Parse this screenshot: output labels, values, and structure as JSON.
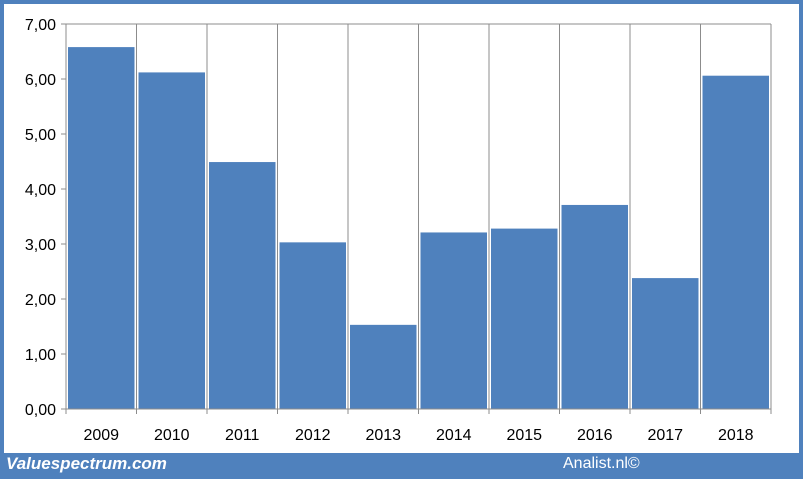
{
  "chart_data": {
    "type": "bar",
    "title": "",
    "xlabel": "",
    "ylabel": "",
    "categories": [
      "2009",
      "2010",
      "2011",
      "2012",
      "2013",
      "2014",
      "2015",
      "2016",
      "2017",
      "2018"
    ],
    "values": [
      6.58,
      6.12,
      4.49,
      3.03,
      1.53,
      3.21,
      3.28,
      3.71,
      2.38,
      6.06
    ],
    "ylim": [
      0,
      7
    ],
    "yticks": [
      "0,00",
      "1,00",
      "2,00",
      "3,00",
      "4,00",
      "5,00",
      "6,00",
      "7,00"
    ],
    "grid": "vertical and top gridlines",
    "bar_color": "#4f81bd",
    "legend": "none"
  },
  "footer": {
    "left_text": "Valuespectrum.com",
    "right_text": "Analist.nl©"
  },
  "colors": {
    "frame": "#4f81bd",
    "grid": "#8c8c8c"
  }
}
